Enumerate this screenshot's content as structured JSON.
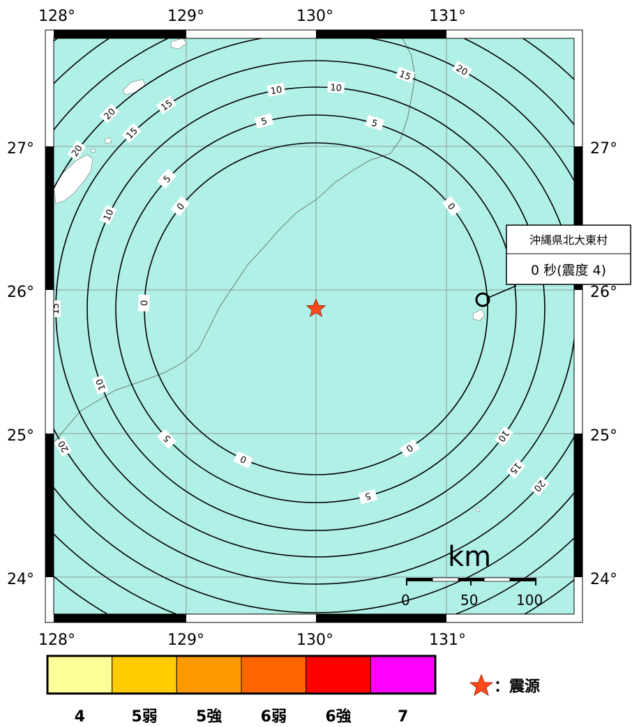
{
  "map": {
    "lon_ticks": [
      "128°",
      "129°",
      "130°",
      "131°"
    ],
    "lat_ticks": [
      "27°",
      "26°",
      "25°",
      "24°"
    ],
    "colors": {
      "sea": "#b0f0e6",
      "land": "#ffffff",
      "contour": "#000000",
      "epicenter": "#ff4a1c"
    },
    "epicenter_icon": "star-icon",
    "contour_labels": {
      "ring_0": "0",
      "ring_5": "5",
      "ring_10": "10",
      "ring_15": "15",
      "ring_20": "20"
    },
    "scale_bar": {
      "unit": "km",
      "labels": [
        "0",
        "50",
        "100"
      ]
    },
    "station": {
      "name": "沖縄県北大東村",
      "value": "0 秒(震度 4)",
      "marker_icon": "ring-marker-icon"
    }
  },
  "legend": {
    "items": [
      {
        "label": "4",
        "color": "#ffff99"
      },
      {
        "label": "5弱",
        "color": "#ffcc00"
      },
      {
        "label": "5強",
        "color": "#ff9900"
      },
      {
        "label": "6弱",
        "color": "#ff6600"
      },
      {
        "label": "6強",
        "color": "#ff0000"
      },
      {
        "label": "7",
        "color": "#ff00ff"
      }
    ],
    "epicenter_label": "：震源",
    "epicenter_icon": "star-icon"
  }
}
